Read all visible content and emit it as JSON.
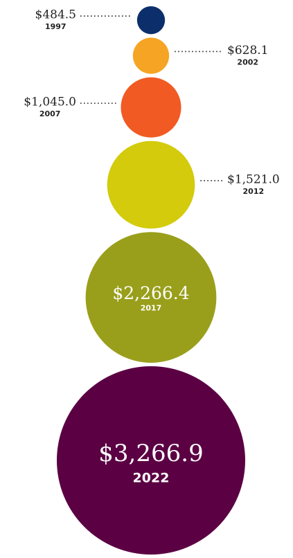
{
  "chart_data": {
    "type": "bubble",
    "categories": [
      "1997",
      "2002",
      "2007",
      "2012",
      "2017",
      "2022"
    ],
    "values": [
      484.5,
      628.1,
      1045.0,
      1521.0,
      2266.4,
      3266.9
    ],
    "value_labels": [
      "$484.5",
      "$628.1",
      "$1,045.0",
      "$1,521.0",
      "$2,266.4",
      "$3,266.9"
    ],
    "colors": [
      "#0c2e6b",
      "#f6a423",
      "#f15a22",
      "#d3cb0b",
      "#999f1b",
      "#5b0043"
    ]
  }
}
